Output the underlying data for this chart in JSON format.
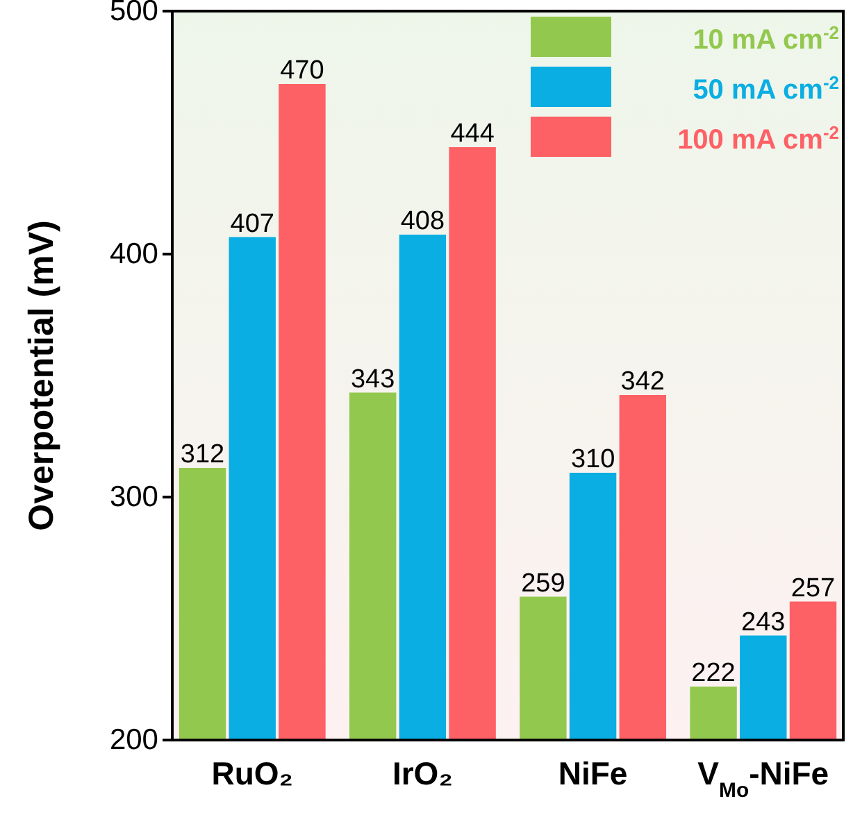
{
  "chart_data": {
    "type": "bar",
    "ylabel": "Overpotential (mV)",
    "categories": [
      "RuO₂",
      "IrO₂",
      "NiFe",
      "V$_{Mo}$-NiFe"
    ],
    "series": [
      {
        "name": "10 mA cm$^{-2}$",
        "color": "#92c84e",
        "values": [
          312,
          343,
          259,
          222
        ]
      },
      {
        "name": "50 mA cm$^{-2}$",
        "color": "#0aaee2",
        "values": [
          407,
          408,
          310,
          243
        ]
      },
      {
        "name": "100 mA cm$^{-2}$",
        "color": "#fd6065",
        "values": [
          470,
          444,
          342,
          257
        ]
      }
    ],
    "ylim": [
      200,
      500
    ],
    "yticks": [
      200,
      300,
      400,
      500
    ],
    "grid": false,
    "legend": "top right",
    "data_labels": true
  }
}
